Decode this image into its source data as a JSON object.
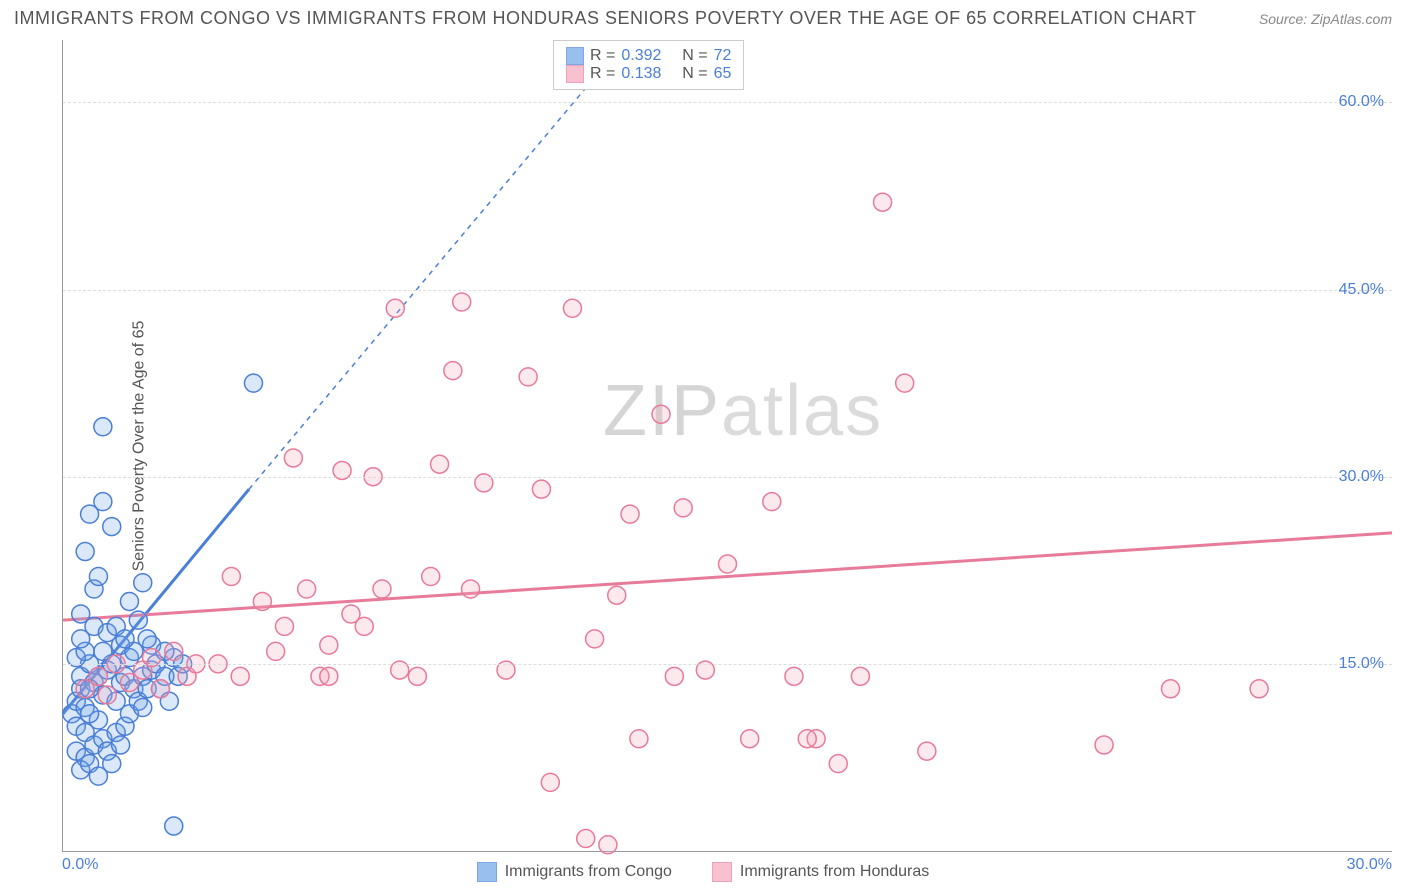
{
  "title": "IMMIGRANTS FROM CONGO VS IMMIGRANTS FROM HONDURAS SENIORS POVERTY OVER THE AGE OF 65 CORRELATION CHART",
  "source_label": "Source: ZipAtlas.com",
  "ylabel": "Seniors Poverty Over the Age of 65",
  "watermark_a": "ZIP",
  "watermark_b": "atlas",
  "chart": {
    "type": "scatter",
    "xlim": [
      0,
      30
    ],
    "ylim": [
      0,
      65
    ],
    "xticks": [
      {
        "v": 0,
        "label": "0.0%"
      },
      {
        "v": 30,
        "label": "30.0%"
      }
    ],
    "yticks": [
      {
        "v": 15,
        "label": "15.0%"
      },
      {
        "v": 30,
        "label": "30.0%"
      },
      {
        "v": 45,
        "label": "45.0%"
      },
      {
        "v": 60,
        "label": "60.0%"
      }
    ],
    "grid_color": "#dddddd",
    "background_color": "#ffffff",
    "marker_radius": 9,
    "marker_fill_opacity": 0.25,
    "marker_stroke_width": 1.5,
    "trend_line_width": 3,
    "trend_dash_width": 1.5,
    "series": [
      {
        "name": "Immigrants from Congo",
        "color": "#6fa4e8",
        "stroke": "#4a7fd8",
        "r": 0.392,
        "n": 72,
        "trend": {
          "x1": 0,
          "y1": 11,
          "x2": 4.2,
          "y2": 29,
          "dash_x2": 12,
          "dash_y2": 62
        },
        "points": [
          [
            0.2,
            11
          ],
          [
            0.3,
            12
          ],
          [
            0.4,
            13
          ],
          [
            0.5,
            11.5
          ],
          [
            0.4,
            14
          ],
          [
            0.6,
            15
          ],
          [
            0.7,
            13.5
          ],
          [
            0.3,
            15.5
          ],
          [
            0.8,
            14
          ],
          [
            0.5,
            16
          ],
          [
            0.9,
            12.5
          ],
          [
            0.6,
            13
          ],
          [
            1.0,
            14.5
          ],
          [
            0.4,
            17
          ],
          [
            1.1,
            15
          ],
          [
            0.7,
            18
          ],
          [
            0.3,
            10
          ],
          [
            0.5,
            9.5
          ],
          [
            0.8,
            10.5
          ],
          [
            0.6,
            11
          ],
          [
            1.2,
            12
          ],
          [
            0.9,
            16
          ],
          [
            1.3,
            13.5
          ],
          [
            1.0,
            17.5
          ],
          [
            0.4,
            19
          ],
          [
            0.7,
            21
          ],
          [
            1.4,
            14
          ],
          [
            0.8,
            22
          ],
          [
            0.5,
            24
          ],
          [
            1.1,
            26
          ],
          [
            0.6,
            27
          ],
          [
            0.9,
            28
          ],
          [
            1.5,
            15.5
          ],
          [
            1.2,
            18
          ],
          [
            1.6,
            13
          ],
          [
            1.3,
            16.5
          ],
          [
            0.3,
            8
          ],
          [
            0.5,
            7.5
          ],
          [
            0.7,
            8.5
          ],
          [
            0.9,
            9
          ],
          [
            1.0,
            8
          ],
          [
            1.2,
            9.5
          ],
          [
            1.4,
            10
          ],
          [
            0.4,
            6.5
          ],
          [
            0.6,
            7
          ],
          [
            0.8,
            6
          ],
          [
            1.1,
            7
          ],
          [
            1.3,
            8.5
          ],
          [
            1.5,
            11
          ],
          [
            1.7,
            12
          ],
          [
            1.8,
            14
          ],
          [
            1.6,
            16
          ],
          [
            1.9,
            13
          ],
          [
            1.4,
            17
          ],
          [
            1.7,
            18.5
          ],
          [
            2.0,
            14.5
          ],
          [
            1.8,
            11.5
          ],
          [
            2.1,
            15
          ],
          [
            2.2,
            13
          ],
          [
            2.0,
            16.5
          ],
          [
            2.3,
            14
          ],
          [
            1.9,
            17
          ],
          [
            2.4,
            12
          ],
          [
            2.5,
            15.5
          ],
          [
            0.9,
            34
          ],
          [
            4.3,
            37.5
          ],
          [
            2.5,
            2
          ],
          [
            1.5,
            20
          ],
          [
            1.8,
            21.5
          ],
          [
            2.6,
            14
          ],
          [
            2.7,
            15
          ],
          [
            2.3,
            16
          ]
        ]
      },
      {
        "name": "Immigrants from Honduras",
        "color": "#f5a8bb",
        "stroke": "#e87a9a",
        "r": 0.138,
        "n": 65,
        "trend": {
          "x1": 0,
          "y1": 18.5,
          "x2": 30,
          "y2": 25.5
        },
        "points": [
          [
            0.5,
            13
          ],
          [
            0.8,
            14
          ],
          [
            1.0,
            12.5
          ],
          [
            1.2,
            15
          ],
          [
            1.5,
            13.5
          ],
          [
            1.8,
            14.5
          ],
          [
            2.0,
            15.5
          ],
          [
            2.2,
            13
          ],
          [
            2.5,
            16
          ],
          [
            2.8,
            14
          ],
          [
            3.0,
            15
          ],
          [
            4.5,
            20
          ],
          [
            5.0,
            18
          ],
          [
            5.5,
            21
          ],
          [
            6.0,
            16.5
          ],
          [
            6.5,
            19
          ],
          [
            7.0,
            30
          ],
          [
            7.5,
            43.5
          ],
          [
            8.0,
            14
          ],
          [
            8.5,
            31
          ],
          [
            9.0,
            44
          ],
          [
            9.2,
            21
          ],
          [
            9.5,
            29.5
          ],
          [
            10.0,
            14.5
          ],
          [
            10.5,
            38
          ],
          [
            10.8,
            29
          ],
          [
            11.0,
            5.5
          ],
          [
            11.5,
            43.5
          ],
          [
            12.0,
            17
          ],
          [
            12.5,
            20.5
          ],
          [
            12.8,
            27
          ],
          [
            13.0,
            9
          ],
          [
            13.5,
            35
          ],
          [
            14.0,
            27.5
          ],
          [
            14.5,
            14.5
          ],
          [
            15.0,
            23
          ],
          [
            15.5,
            9
          ],
          [
            16.0,
            28
          ],
          [
            16.5,
            14
          ],
          [
            17.0,
            9
          ],
          [
            17.5,
            7
          ],
          [
            18.0,
            14
          ],
          [
            18.5,
            52
          ],
          [
            19.0,
            37.5
          ],
          [
            19.5,
            8
          ],
          [
            5.2,
            31.5
          ],
          [
            6.3,
            30.5
          ],
          [
            7.6,
            14.5
          ],
          [
            3.5,
            15
          ],
          [
            4.0,
            14
          ],
          [
            4.8,
            16
          ],
          [
            3.8,
            22
          ],
          [
            11.8,
            1
          ],
          [
            12.3,
            0.5
          ],
          [
            8.8,
            38.5
          ],
          [
            6.8,
            18
          ],
          [
            5.8,
            14
          ],
          [
            23.5,
            8.5
          ],
          [
            25.0,
            13
          ],
          [
            27.0,
            13
          ],
          [
            16.8,
            9
          ],
          [
            13.8,
            14
          ],
          [
            7.2,
            21
          ],
          [
            8.3,
            22
          ],
          [
            6.0,
            14
          ]
        ]
      }
    ]
  },
  "legend": {
    "series1_label": "Immigrants from Congo",
    "series2_label": "Immigrants from Honduras"
  },
  "stats_box": {
    "r_label": "R =",
    "n_label": "N ="
  }
}
